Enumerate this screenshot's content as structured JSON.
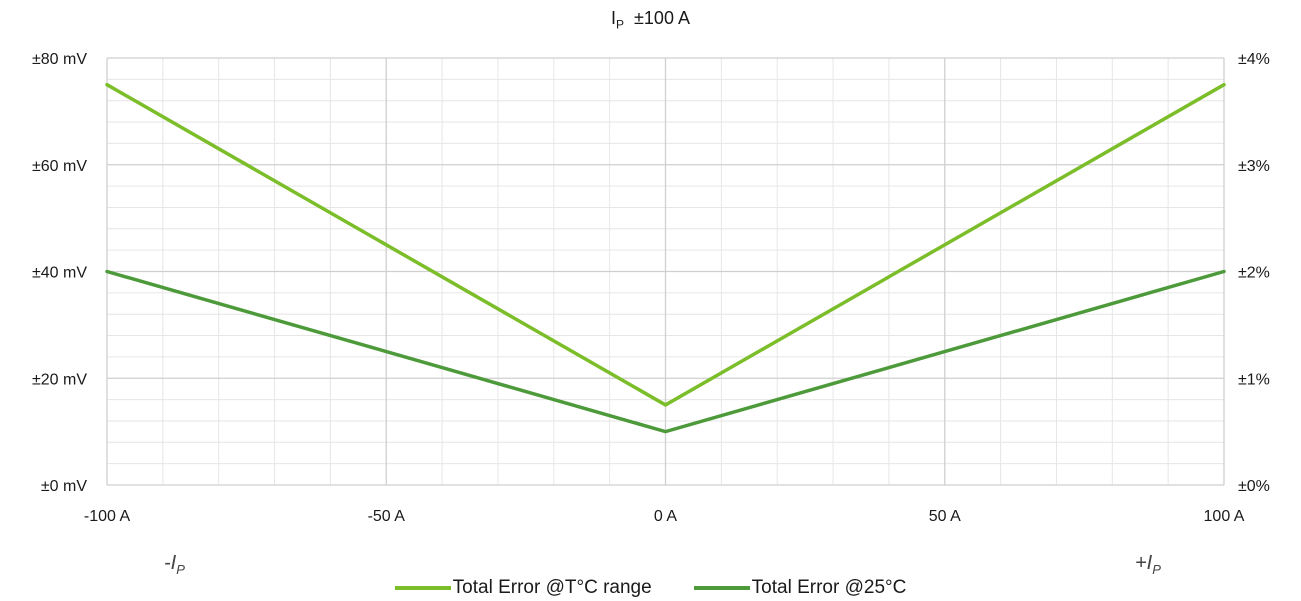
{
  "chart_data": {
    "type": "line",
    "title": {
      "main": "I",
      "sub": "P",
      "rest": "±100 A"
    },
    "x": [
      -100,
      0,
      100
    ],
    "x_ticks": [
      -100,
      -50,
      0,
      50,
      100
    ],
    "x_tick_labels": [
      "-100 A",
      "-50 A",
      "0 A",
      "50 A",
      "100 A"
    ],
    "xlim": [
      -100,
      100
    ],
    "ylim": [
      0,
      80
    ],
    "y_ticks": [
      0,
      20,
      40,
      60,
      80
    ],
    "y_tick_labels": [
      "±0 mV",
      "±20 mV",
      "±40 mV",
      "±60 mV",
      "±80 mV"
    ],
    "y2_ticks": [
      0,
      1,
      2,
      3,
      4
    ],
    "y2_tick_labels": [
      "±0%",
      "±1%",
      "±2%",
      "±3%",
      "±4%"
    ],
    "grid": true,
    "series": [
      {
        "name": "Total Error @T°C range",
        "values": [
          75,
          15,
          75
        ],
        "color": "#7cbd2a"
      },
      {
        "name": "Total Error @25°C",
        "values": [
          40,
          10,
          40
        ],
        "color": "#4d9a3a"
      }
    ],
    "legend_position": "bottom",
    "corner_labels": {
      "left": {
        "main": "-I",
        "sub": "P"
      },
      "right": {
        "main": "+I",
        "sub": "P"
      }
    }
  }
}
